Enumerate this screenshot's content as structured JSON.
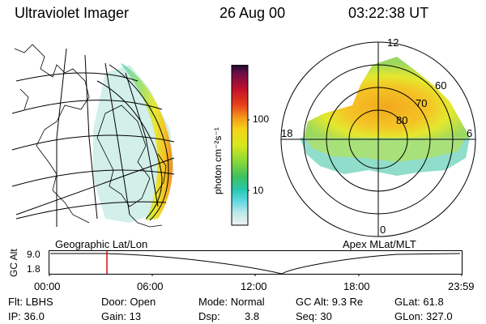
{
  "header": {
    "title": "Ultraviolet Imager",
    "date": "26 Aug 00",
    "time": "03:22:38 UT"
  },
  "colorbar": {
    "unit_label": "photon cm⁻²s⁻¹",
    "ticks": [
      "100",
      "10"
    ]
  },
  "geo_panel": {
    "label": "Geographic Lat/Lon"
  },
  "polar_panel": {
    "label": "Apex MLat/MLT",
    "mlt_labels": {
      "top": "12",
      "left": "18",
      "right": "6",
      "bottom": "0"
    },
    "lat_labels": [
      "60",
      "70",
      "80"
    ]
  },
  "timeline": {
    "y_axis_label": "GC Alt",
    "y_ticks": [
      "9.0",
      "1.8"
    ],
    "time_ticks": [
      "00:00",
      "06:00",
      "12:00",
      "18:00",
      "23:59"
    ],
    "cursor_color": "#d01010"
  },
  "status": {
    "flt": "Flt: LBHS",
    "door": "Door: Open",
    "mode": "Mode: Normal",
    "gc_alt": "GC Alt: 9.3 Re",
    "glat": "GLat:  61.8",
    "ip": "IP: 36.0",
    "gain": "Gain: 13",
    "dsp_label": "Dsp:",
    "dsp_value": "3.8",
    "seq": "Seq: 30",
    "glon": "GLon: 327.0"
  }
}
